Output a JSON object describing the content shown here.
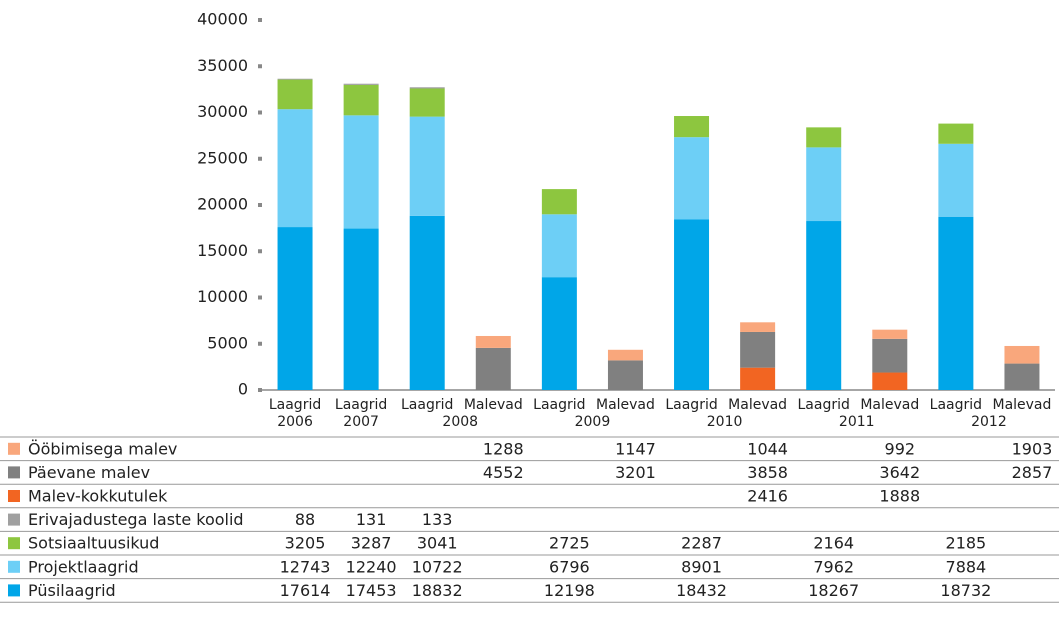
{
  "chart_data": {
    "type": "stacked-bar",
    "groups": [
      {
        "label": "2006",
        "categories": [
          "Laagrid"
        ]
      },
      {
        "label": "2007",
        "categories": [
          "Laagrid"
        ]
      },
      {
        "label": "2008",
        "categories": [
          "Laagrid",
          "Malevad"
        ]
      },
      {
        "label": "2009",
        "categories": [
          "Laagrid",
          "Malevad"
        ]
      },
      {
        "label": "2010",
        "categories": [
          "Laagrid",
          "Malevad"
        ]
      },
      {
        "label": "2011",
        "categories": [
          "Laagrid",
          "Malevad"
        ]
      },
      {
        "label": "2012",
        "categories": [
          "Laagrid",
          "Malevad"
        ]
      }
    ],
    "series": [
      {
        "name": "Ööbimisega malev",
        "color": "#f9a77c",
        "values": [
          null,
          null,
          null,
          1288,
          null,
          1147,
          null,
          1044,
          null,
          992,
          null,
          1903
        ]
      },
      {
        "name": "Päevane malev",
        "color": "#808080",
        "values": [
          null,
          null,
          null,
          4552,
          null,
          3201,
          null,
          3858,
          null,
          3642,
          null,
          2857
        ]
      },
      {
        "name": "Malev-kokkutulek",
        "color": "#f26522",
        "values": [
          null,
          null,
          null,
          null,
          null,
          null,
          null,
          2416,
          null,
          1888,
          null,
          null
        ]
      },
      {
        "name": "Erivajadustega laste koolid",
        "color": "#a0a0a0",
        "values": [
          88,
          131,
          133,
          null,
          null,
          null,
          null,
          null,
          null,
          null,
          null,
          null
        ]
      },
      {
        "name": "Sotsiaaltuusikud",
        "color": "#8dc63f",
        "values": [
          3205,
          3287,
          3041,
          null,
          2725,
          null,
          2287,
          null,
          2164,
          null,
          2185,
          null
        ]
      },
      {
        "name": "Projektlaagrid",
        "color": "#6dcff6",
        "values": [
          12743,
          12240,
          10722,
          null,
          6796,
          null,
          8901,
          null,
          7962,
          null,
          7884,
          null
        ]
      },
      {
        "name": "Püsilaagrid",
        "color": "#00a6e8",
        "values": [
          17614,
          17453,
          18832,
          null,
          12198,
          null,
          18432,
          null,
          18267,
          null,
          18732,
          null
        ]
      }
    ],
    "ylim": [
      0,
      40000
    ],
    "yticks": [
      0,
      5000,
      10000,
      15000,
      20000,
      25000,
      30000,
      35000,
      40000
    ]
  }
}
